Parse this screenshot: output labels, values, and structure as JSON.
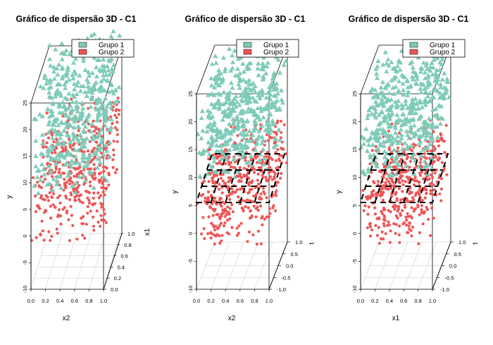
{
  "chart_data": [
    {
      "type": "scatter",
      "title": "Gráfico de dispersão 3D - C1",
      "xlabel": "x2",
      "ylabel": "y",
      "zlabel": "x1",
      "x_ticks": [
        "0.0",
        "0.2",
        "0.4",
        "0.6",
        "0.8",
        "1.0"
      ],
      "y_ticks": [
        "-10",
        "-5",
        "0",
        "5",
        "10",
        "15",
        "20",
        "25"
      ],
      "z_ticks": [
        "0.0",
        "0.2",
        "0.4",
        "0.6",
        "0.8",
        "1.0"
      ],
      "xlim": [
        0,
        1
      ],
      "ylim": [
        -10,
        25
      ],
      "zlim": [
        0,
        1
      ],
      "grid": true,
      "legend_position": "top-right",
      "dashed_plane": false,
      "series": [
        {
          "name": "Grupo 1",
          "color": "#7ECBB8",
          "marker": "triangle",
          "approx_count": 500,
          "y_range": [
            8,
            28
          ]
        },
        {
          "name": "Grupo 2",
          "color": "#EE5555",
          "marker": "circle",
          "approx_count": 500,
          "y_range": [
            -1,
            16
          ]
        }
      ]
    },
    {
      "type": "scatter",
      "title": "Gráfico de dispersão 3D - C1",
      "xlabel": "x2",
      "ylabel": "y",
      "zlabel": "t",
      "x_ticks": [
        "0.0",
        "0.2",
        "0.4",
        "0.6",
        "0.8",
        "1.0"
      ],
      "y_ticks": [
        "-10",
        "-5",
        "0",
        "5",
        "10",
        "15",
        "20",
        "25"
      ],
      "z_ticks": [
        "-1.0",
        "-0.5",
        "0.0",
        "0.5",
        "1.0"
      ],
      "xlim": [
        0,
        1
      ],
      "ylim": [
        -10,
        25
      ],
      "zlim": [
        -1,
        1
      ],
      "grid": true,
      "legend_position": "top-right",
      "dashed_plane": true,
      "series": [
        {
          "name": "Grupo 1",
          "color": "#7ECBB8",
          "marker": "triangle",
          "approx_count": 500,
          "y_range": [
            10,
            25
          ]
        },
        {
          "name": "Grupo 2",
          "color": "#EE5555",
          "marker": "circle",
          "approx_count": 500,
          "y_range": [
            -2,
            12
          ]
        }
      ]
    },
    {
      "type": "scatter",
      "title": "Gráfico de dispersão 3D - C1",
      "xlabel": "x1",
      "ylabel": "y",
      "zlabel": "t",
      "x_ticks": [
        "0.0",
        "0.2",
        "0.4",
        "0.6",
        "0.8",
        "1.0"
      ],
      "y_ticks": [
        "-10",
        "-5",
        "0",
        "5",
        "10",
        "15",
        "20",
        "25"
      ],
      "z_ticks": [
        "-1.0",
        "-0.5",
        "0.0",
        "0.5",
        "1.0"
      ],
      "xlim": [
        0,
        1
      ],
      "ylim": [
        -10,
        25
      ],
      "zlim": [
        -1,
        1
      ],
      "grid": true,
      "legend_position": "top-right",
      "dashed_plane": true,
      "series": [
        {
          "name": "Grupo 1",
          "color": "#7ECBB8",
          "marker": "triangle",
          "approx_count": 500,
          "y_range": [
            10,
            25
          ]
        },
        {
          "name": "Grupo 2",
          "color": "#EE5555",
          "marker": "circle",
          "approx_count": 500,
          "y_range": [
            -2,
            12
          ]
        }
      ]
    }
  ]
}
